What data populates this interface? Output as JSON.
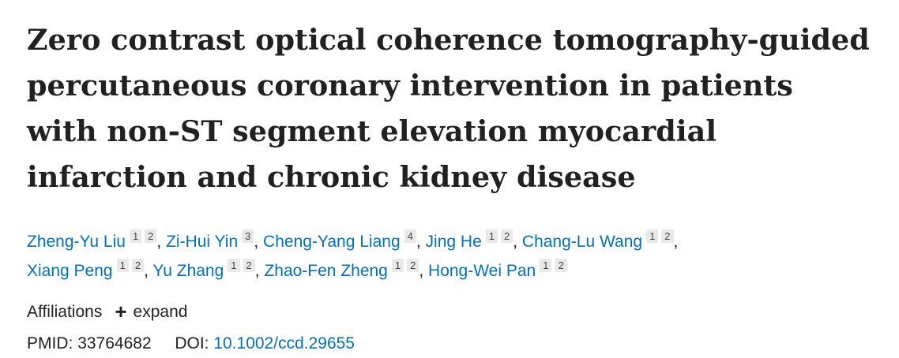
{
  "article": {
    "title": "Zero contrast optical coherence tomography-guided percutaneous coronary intervention in patients with non-ST segment elevation myocardial infarction and chronic kidney disease"
  },
  "authors": [
    {
      "name": "Zheng-Yu Liu",
      "affs": [
        "1",
        "2"
      ]
    },
    {
      "name": "Zi-Hui Yin",
      "affs": [
        "3"
      ]
    },
    {
      "name": "Cheng-Yang Liang",
      "affs": [
        "4"
      ]
    },
    {
      "name": "Jing He",
      "affs": [
        "1",
        "2"
      ]
    },
    {
      "name": "Chang-Lu Wang",
      "affs": [
        "1",
        "2"
      ]
    },
    {
      "name": "Xiang Peng",
      "affs": [
        "1",
        "2"
      ]
    },
    {
      "name": "Yu Zhang",
      "affs": [
        "1",
        "2"
      ]
    },
    {
      "name": "Zhao-Fen Zheng",
      "affs": [
        "1",
        "2"
      ]
    },
    {
      "name": "Hong-Wei Pan",
      "affs": [
        "1",
        "2"
      ]
    }
  ],
  "affiliations": {
    "label": "Affiliations",
    "expand_icon": "+",
    "expand_label": "expand"
  },
  "identifiers": {
    "pmid_label": "PMID:",
    "pmid": "33764682",
    "doi_label": "DOI:",
    "doi": "10.1002/ccd.29655"
  },
  "colors": {
    "link": "#0071bc",
    "text": "#212121",
    "badge_bg": "#e9e9e9"
  }
}
